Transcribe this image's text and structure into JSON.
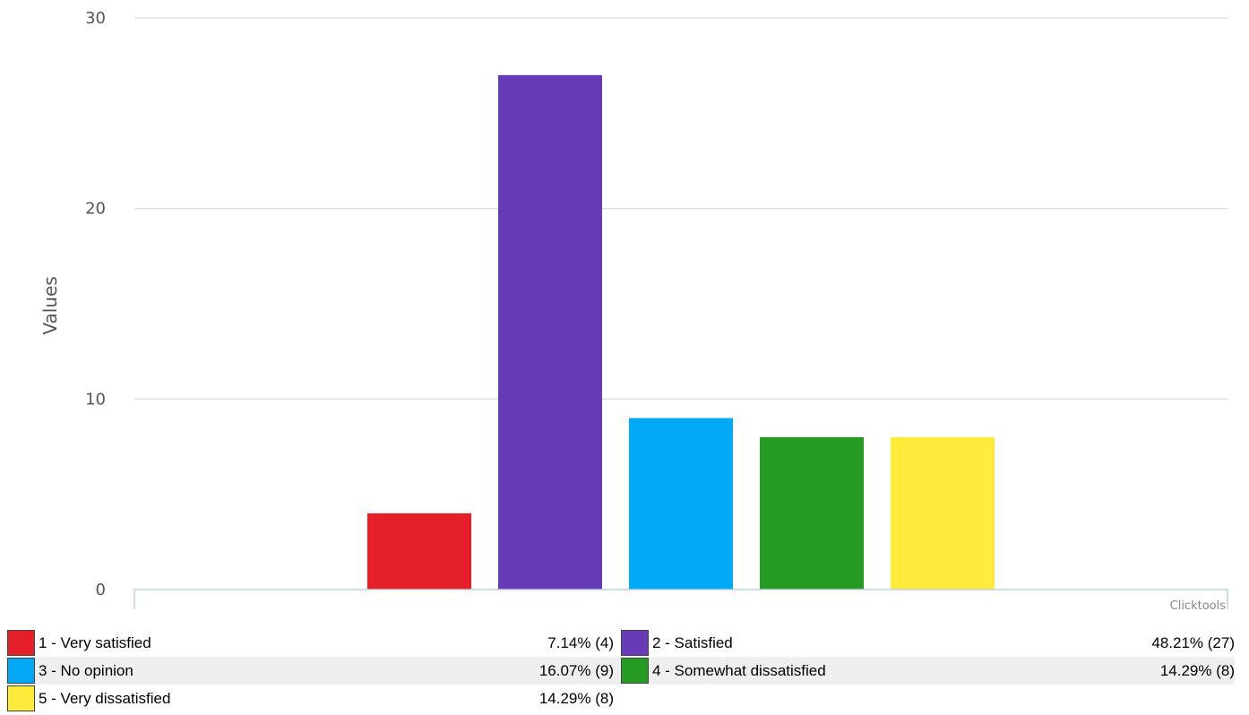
{
  "chart_data": {
    "type": "bar",
    "categories": [
      "1 - Very satisfied",
      "2 - Satisfied",
      "3 - No opinion",
      "4 - Somewhat dissatisfied",
      "5 - Very dissatisfied"
    ],
    "values": [
      4,
      27,
      9,
      8,
      8
    ],
    "colors": [
      "#e51f27",
      "#673ab7",
      "#03a9f4",
      "#259b24",
      "#ffeb3b"
    ],
    "ylabel": "Values",
    "ylim": [
      0,
      30
    ],
    "yticks": [
      0,
      10,
      20,
      30
    ],
    "grid": true,
    "legend_placement": "bottom"
  },
  "credit": "Clicktools",
  "legend": [
    {
      "label": "1 - Very satisfied",
      "value": "7.14% (4)",
      "color": "#e51f27"
    },
    {
      "label": "2 - Satisfied",
      "value": "48.21% (27)",
      "color": "#673ab7"
    },
    {
      "label": "3 - No opinion",
      "value": "16.07% (9)",
      "color": "#03a9f4"
    },
    {
      "label": "4 - Somewhat dissatisfied",
      "value": "14.29% (8)",
      "color": "#259b24"
    },
    {
      "label": "5 - Very dissatisfied",
      "value": "14.29% (8)",
      "color": "#ffeb3b"
    }
  ]
}
